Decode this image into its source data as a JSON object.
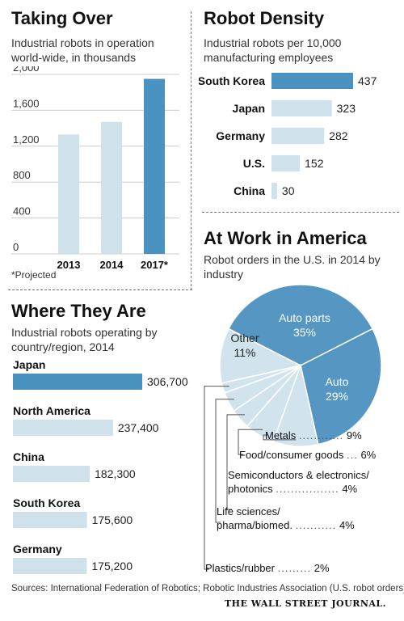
{
  "chart_data": [
    {
      "type": "bar",
      "title": "Taking Over",
      "subtitle": "Industrial robots in operation world-wide, in thousands",
      "categories": [
        "2013",
        "2014",
        "2017*"
      ],
      "values": [
        1330,
        1470,
        1950
      ],
      "highlight_index": 2,
      "yticks": [
        "2,000",
        "1,600",
        "1,200",
        "800",
        "400",
        "0"
      ],
      "ylim": [
        0,
        2000
      ],
      "footnote": "*Projected"
    },
    {
      "type": "bar",
      "orientation": "horizontal",
      "title": "Robot Density",
      "subtitle": "Industrial robots per 10,000 manufacturing employees",
      "categories": [
        "South Korea",
        "Japan",
        "Germany",
        "U.S.",
        "China"
      ],
      "values": [
        437,
        323,
        282,
        152,
        30
      ],
      "value_labels": [
        "437",
        "323",
        "282",
        "152",
        "30"
      ],
      "highlight_index": 0
    },
    {
      "type": "bar",
      "orientation": "horizontal",
      "title": "Where They Are",
      "subtitle": "Industrial robots operating by country/region, 2014",
      "categories": [
        "Japan",
        "North America",
        "China",
        "South Korea",
        "Germany"
      ],
      "values": [
        306700,
        237400,
        182300,
        175600,
        175200
      ],
      "value_labels": [
        "306,700",
        "237,400",
        "182,300",
        "175,600",
        "175,200"
      ],
      "highlight_index": 0
    },
    {
      "type": "pie",
      "title": "At Work in America",
      "subtitle": "Robot orders in the U.S. in 2014 by industry",
      "slices": [
        {
          "label": "Auto parts",
          "value": 35,
          "pct_label": "35%",
          "inside": true
        },
        {
          "label": "Auto",
          "value": 29,
          "pct_label": "29%",
          "inside": true
        },
        {
          "label": "Metals",
          "value": 9,
          "pct_label": "9%",
          "inside": false
        },
        {
          "label": "Food/consumer goods",
          "value": 6,
          "pct_label": "6%",
          "inside": false
        },
        {
          "label": "Semiconductors & electronics/ photonics",
          "value": 4,
          "pct_label": "4%",
          "inside": false
        },
        {
          "label": "Life sciences/ pharma/biomed.",
          "value": 4,
          "pct_label": "4%",
          "inside": false
        },
        {
          "label": "Plastics/rubber",
          "value": 2,
          "pct_label": "2%",
          "inside": false
        },
        {
          "label": "Other",
          "value": 11,
          "pct_label": "11%",
          "inside": true
        }
      ]
    }
  ],
  "legend": {
    "metals": "Metals",
    "metals_dots": "............",
    "metals_pct": "9%",
    "food": "Food/consumer goods",
    "food_dots": "...",
    "food_pct": "6%",
    "semi_line1": "Semiconductors & electronics/",
    "semi_line2": "photonics",
    "semi_dots": ".................",
    "semi_pct": "4%",
    "life_line1": "Life sciences/",
    "life_line2": "pharma/biomed.",
    "life_dots": "...........",
    "life_pct": "4%",
    "plastics": "Plastics/rubber",
    "plastics_dots": ".........",
    "plastics_pct": "2%"
  },
  "pie_labels": {
    "auto_parts": "Auto parts",
    "auto_parts_pct": "35%",
    "auto": "Auto",
    "auto_pct": "29%",
    "other": "Other",
    "other_pct": "11%"
  },
  "footer": {
    "sources": "Sources: International Federation of Robotics; Robotic Industries Association (U.S. robot orders)",
    "publisher": "THE WALL STREET JOURNAL."
  },
  "colors": {
    "dark_bar": "#4a93c0",
    "light_bar": "#cfe1eb",
    "pie_dark": "#5597c2",
    "pie_light": "#d1e4ee",
    "grid": "#cccccc"
  }
}
